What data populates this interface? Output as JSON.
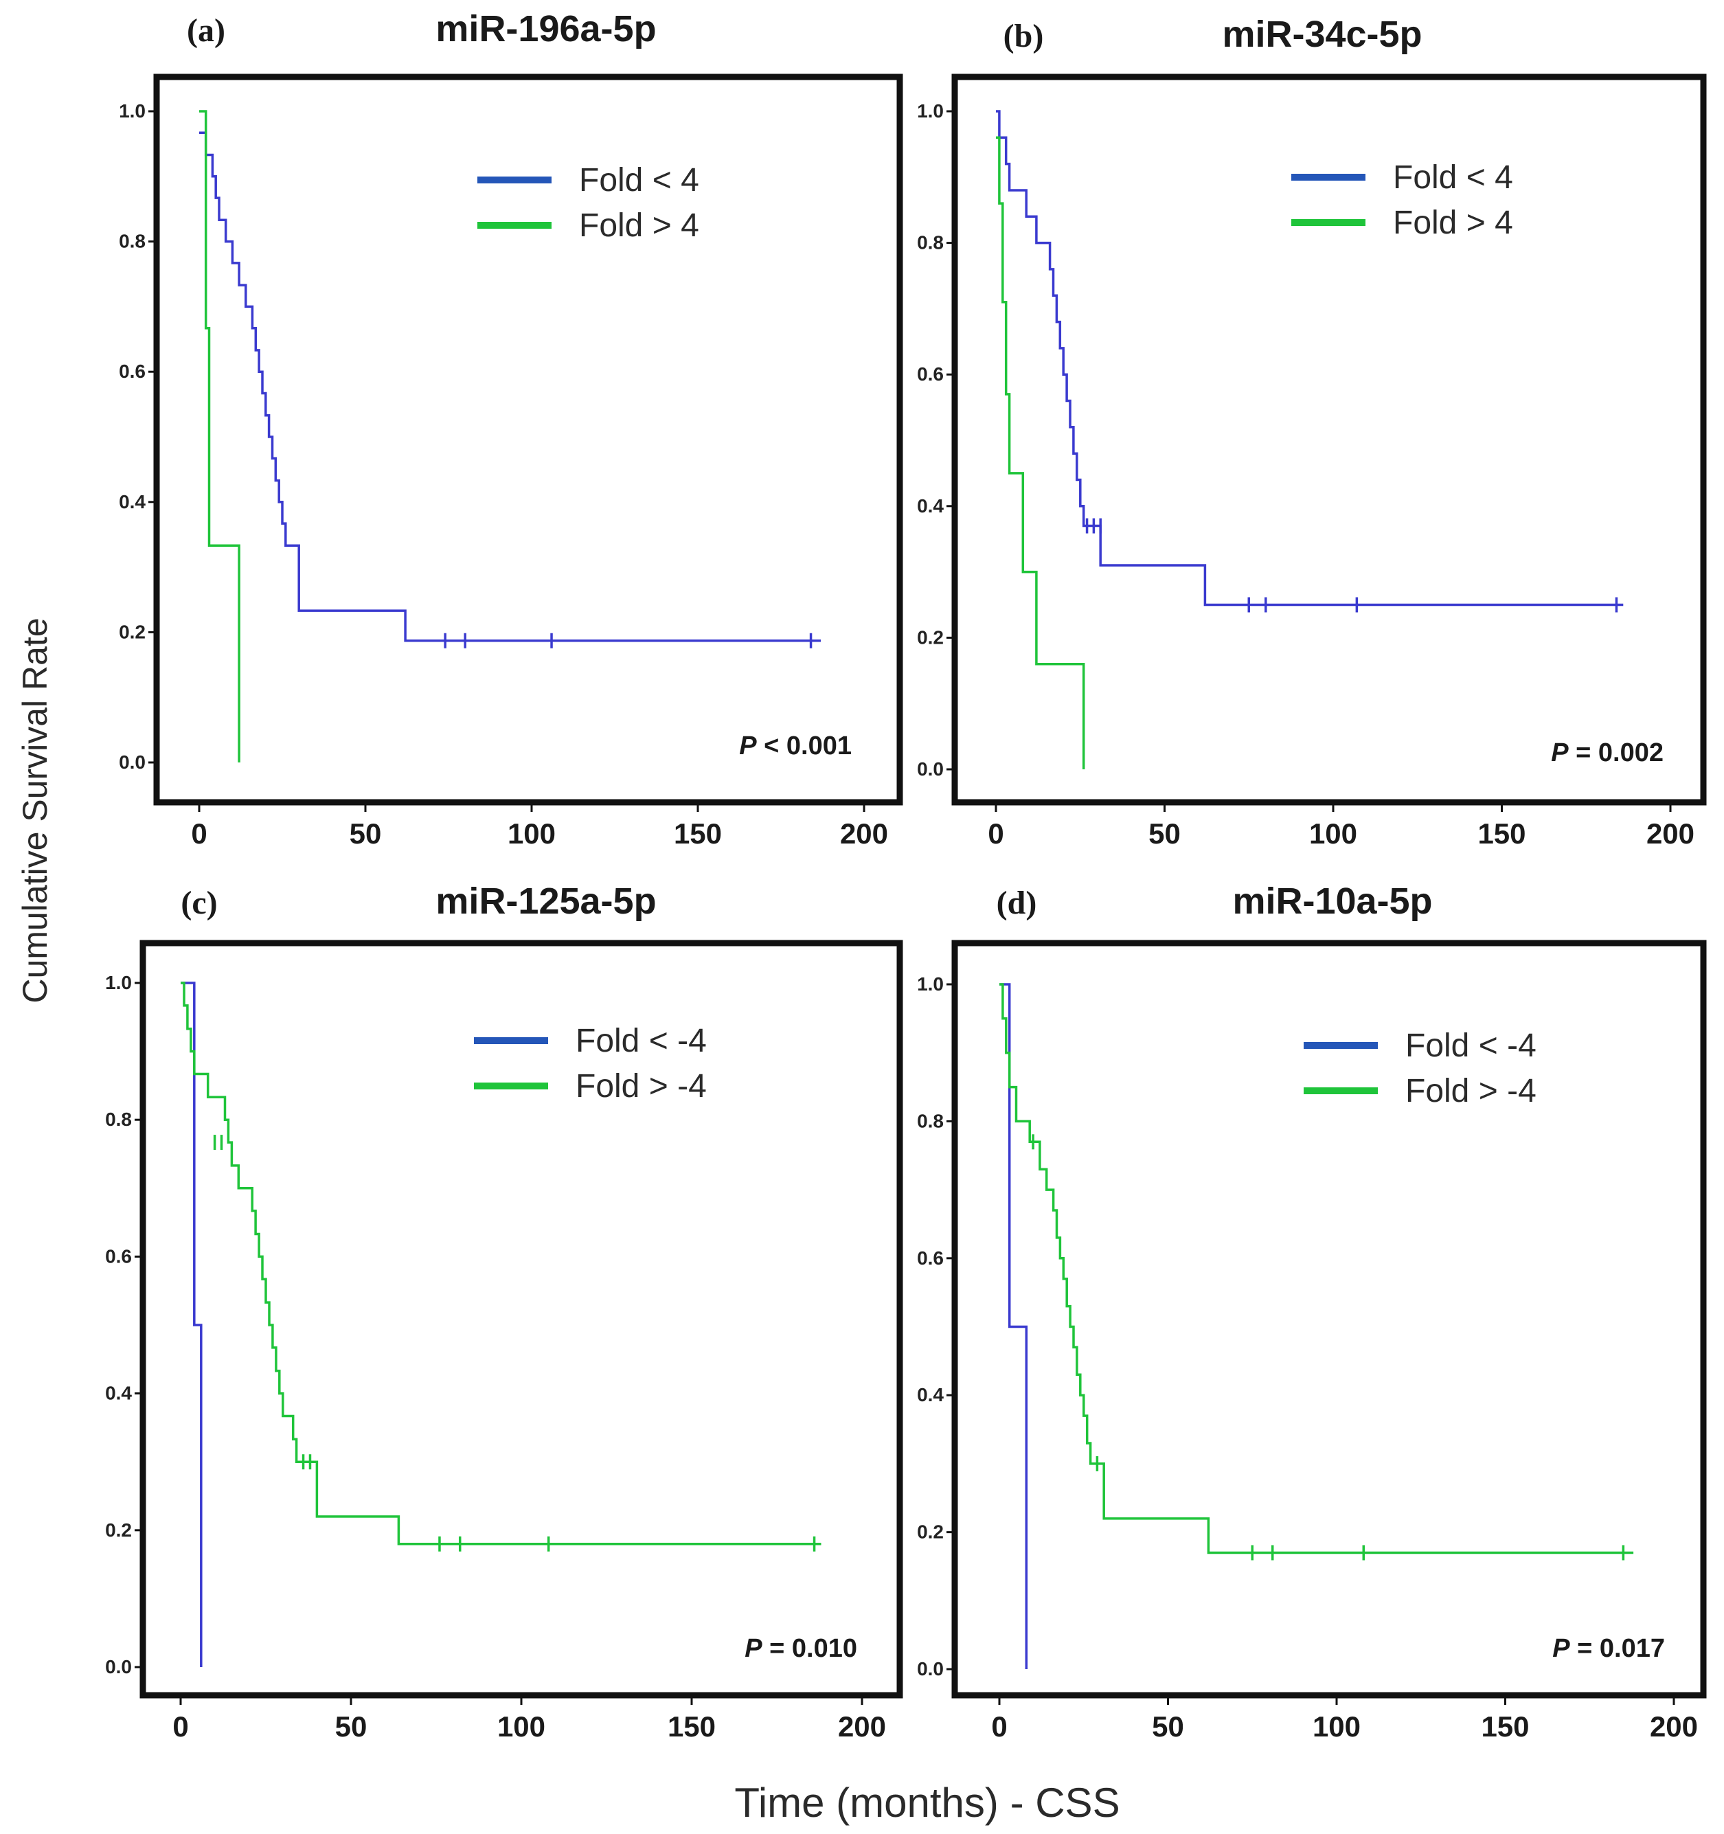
{
  "figure": {
    "ylabel": "Cumulative Survival Rate",
    "xlabel": "Time (months) - CSS"
  },
  "chart_data": [
    {
      "type": "line",
      "panel_label": "(a)",
      "title": "miR-196a-5p",
      "xlim": [
        0,
        200
      ],
      "ylim": [
        0,
        1
      ],
      "x_ticks": [
        0,
        50,
        100,
        150,
        200
      ],
      "y_ticks": [
        "0.0",
        "0.2",
        "0.4",
        "0.6",
        "0.8",
        "1.0"
      ],
      "legend_position": "top-right",
      "p_value": {
        "label": "P",
        "text": " < 0.001"
      },
      "colors": {
        "blue": "#3a3acf",
        "green": "#1fc43a"
      },
      "series": [
        {
          "name": "Fold < 4",
          "color": "blue",
          "steps": [
            [
              0,
              0.967
            ],
            [
              2,
              0.967
            ],
            [
              2,
              0.933
            ],
            [
              4,
              0.933
            ],
            [
              4,
              0.9
            ],
            [
              5,
              0.9
            ],
            [
              5,
              0.867
            ],
            [
              6,
              0.867
            ],
            [
              6,
              0.833
            ],
            [
              8,
              0.833
            ],
            [
              8,
              0.8
            ],
            [
              10,
              0.8
            ],
            [
              10,
              0.767
            ],
            [
              12,
              0.767
            ],
            [
              12,
              0.733
            ],
            [
              14,
              0.733
            ],
            [
              14,
              0.7
            ],
            [
              16,
              0.7
            ],
            [
              16,
              0.667
            ],
            [
              17,
              0.667
            ],
            [
              17,
              0.633
            ],
            [
              18,
              0.633
            ],
            [
              18,
              0.6
            ],
            [
              19,
              0.6
            ],
            [
              19,
              0.567
            ],
            [
              20,
              0.567
            ],
            [
              20,
              0.533
            ],
            [
              21,
              0.533
            ],
            [
              21,
              0.5
            ],
            [
              22,
              0.5
            ],
            [
              22,
              0.467
            ],
            [
              23,
              0.467
            ],
            [
              23,
              0.433
            ],
            [
              24,
              0.433
            ],
            [
              24,
              0.4
            ],
            [
              25,
              0.4
            ],
            [
              25,
              0.367
            ],
            [
              26,
              0.367
            ],
            [
              26,
              0.333
            ],
            [
              30,
              0.333
            ],
            [
              30,
              0.233
            ],
            [
              62,
              0.233
            ],
            [
              62,
              0.187
            ],
            [
              187,
              0.187
            ]
          ],
          "censored": [
            [
              74,
              0.187
            ],
            [
              80,
              0.187
            ],
            [
              106,
              0.187
            ],
            [
              184,
              0.187
            ]
          ]
        },
        {
          "name": "Fold > 4",
          "color": "green",
          "steps": [
            [
              0,
              1.0
            ],
            [
              2,
              1.0
            ],
            [
              2,
              0.667
            ],
            [
              3,
              0.667
            ],
            [
              3,
              0.333
            ],
            [
              12,
              0.333
            ],
            [
              12,
              0.0
            ]
          ],
          "censored": []
        }
      ]
    },
    {
      "type": "line",
      "panel_label": "(b)",
      "title": "miR-34c-5p",
      "xlim": [
        0,
        200
      ],
      "ylim": [
        0,
        1
      ],
      "x_ticks": [
        0,
        50,
        100,
        150,
        200
      ],
      "y_ticks": [
        "0.0",
        "0.2",
        "0.4",
        "0.6",
        "0.8",
        "1.0"
      ],
      "legend_position": "top-right",
      "p_value": {
        "label": "P",
        "text": " = 0.002"
      },
      "colors": {
        "blue": "#3a3acf",
        "green": "#1fc43a"
      },
      "series": [
        {
          "name": "Fold < 4",
          "color": "blue",
          "steps": [
            [
              0,
              1.0
            ],
            [
              1,
              1.0
            ],
            [
              1,
              0.96
            ],
            [
              3,
              0.96
            ],
            [
              3,
              0.92
            ],
            [
              4,
              0.92
            ],
            [
              4,
              0.88
            ],
            [
              9,
              0.88
            ],
            [
              9,
              0.84
            ],
            [
              12,
              0.84
            ],
            [
              12,
              0.8
            ],
            [
              16,
              0.8
            ],
            [
              16,
              0.76
            ],
            [
              17,
              0.76
            ],
            [
              17,
              0.72
            ],
            [
              18,
              0.72
            ],
            [
              18,
              0.68
            ],
            [
              19,
              0.68
            ],
            [
              19,
              0.64
            ],
            [
              20,
              0.64
            ],
            [
              20,
              0.6
            ],
            [
              21,
              0.6
            ],
            [
              21,
              0.56
            ],
            [
              22,
              0.56
            ],
            [
              22,
              0.52
            ],
            [
              23,
              0.52
            ],
            [
              23,
              0.48
            ],
            [
              24,
              0.48
            ],
            [
              24,
              0.44
            ],
            [
              25,
              0.44
            ],
            [
              25,
              0.4
            ],
            [
              26,
              0.4
            ],
            [
              26,
              0.37
            ],
            [
              31,
              0.37
            ],
            [
              31,
              0.31
            ],
            [
              62,
              0.31
            ],
            [
              62,
              0.25
            ],
            [
              186,
              0.25
            ]
          ],
          "censored": [
            [
              27,
              0.37
            ],
            [
              29,
              0.37
            ],
            [
              31,
              0.37
            ],
            [
              75,
              0.25
            ],
            [
              80,
              0.25
            ],
            [
              107,
              0.25
            ],
            [
              184,
              0.25
            ]
          ]
        },
        {
          "name": "Fold > 4",
          "color": "green",
          "steps": [
            [
              0,
              0.96
            ],
            [
              1,
              0.96
            ],
            [
              1,
              0.86
            ],
            [
              2,
              0.86
            ],
            [
              2,
              0.71
            ],
            [
              3,
              0.71
            ],
            [
              3,
              0.57
            ],
            [
              4,
              0.57
            ],
            [
              4,
              0.45
            ],
            [
              8,
              0.45
            ],
            [
              8,
              0.3
            ],
            [
              12,
              0.3
            ],
            [
              12,
              0.16
            ],
            [
              26,
              0.16
            ],
            [
              26,
              0.0
            ]
          ],
          "censored": []
        }
      ]
    },
    {
      "type": "line",
      "panel_label": "(c)",
      "title": "miR-125a-5p",
      "xlim": [
        0,
        200
      ],
      "ylim": [
        0,
        1
      ],
      "x_ticks": [
        0,
        50,
        100,
        150,
        200
      ],
      "y_ticks": [
        "0.0",
        "0.2",
        "0.4",
        "0.6",
        "0.8",
        "1.0"
      ],
      "legend_position": "top-right",
      "p_value": {
        "label": "P",
        "text": " = 0.010"
      },
      "colors": {
        "blue": "#3a3acf",
        "green": "#1fc43a"
      },
      "series": [
        {
          "name": "Fold < -4",
          "color": "blue",
          "steps": [
            [
              0,
              1.0
            ],
            [
              4,
              1.0
            ],
            [
              4,
              0.5
            ],
            [
              6,
              0.5
            ],
            [
              6,
              0.0
            ]
          ],
          "censored": []
        },
        {
          "name": "Fold > -4",
          "color": "green",
          "steps": [
            [
              0,
              1.0
            ],
            [
              1,
              1.0
            ],
            [
              1,
              0.967
            ],
            [
              2,
              0.967
            ],
            [
              2,
              0.933
            ],
            [
              3,
              0.933
            ],
            [
              3,
              0.9
            ],
            [
              4,
              0.9
            ],
            [
              4,
              0.867
            ],
            [
              8,
              0.867
            ],
            [
              8,
              0.833
            ],
            [
              13,
              0.833
            ],
            [
              13,
              0.8
            ],
            [
              14,
              0.8
            ],
            [
              14,
              0.767
            ],
            [
              15,
              0.767
            ],
            [
              15,
              0.733
            ],
            [
              17,
              0.733
            ],
            [
              17,
              0.7
            ],
            [
              21,
              0.7
            ],
            [
              21,
              0.667
            ],
            [
              22,
              0.667
            ],
            [
              22,
              0.633
            ],
            [
              23,
              0.633
            ],
            [
              23,
              0.6
            ],
            [
              24,
              0.6
            ],
            [
              24,
              0.567
            ],
            [
              25,
              0.567
            ],
            [
              25,
              0.533
            ],
            [
              26,
              0.533
            ],
            [
              26,
              0.5
            ],
            [
              27,
              0.5
            ],
            [
              27,
              0.467
            ],
            [
              28,
              0.467
            ],
            [
              28,
              0.433
            ],
            [
              29,
              0.433
            ],
            [
              29,
              0.4
            ],
            [
              30,
              0.4
            ],
            [
              30,
              0.367
            ],
            [
              33,
              0.367
            ],
            [
              33,
              0.333
            ],
            [
              34,
              0.333
            ],
            [
              34,
              0.3
            ],
            [
              40,
              0.3
            ],
            [
              40,
              0.22
            ],
            [
              64,
              0.22
            ],
            [
              64,
              0.18
            ],
            [
              188,
              0.18
            ]
          ],
          "censored": [
            [
              10,
              0.767
            ],
            [
              12,
              0.767
            ],
            [
              36,
              0.3
            ],
            [
              38,
              0.3
            ],
            [
              76,
              0.18
            ],
            [
              82,
              0.18
            ],
            [
              108,
              0.18
            ],
            [
              186,
              0.18
            ]
          ]
        }
      ]
    },
    {
      "type": "line",
      "panel_label": "(d)",
      "title": "miR-10a-5p",
      "xlim": [
        0,
        200
      ],
      "ylim": [
        0,
        1
      ],
      "x_ticks": [
        0,
        50,
        100,
        150,
        200
      ],
      "y_ticks": [
        "0.0",
        "0.2",
        "0.4",
        "0.6",
        "0.8",
        "1.0"
      ],
      "legend_position": "top-right",
      "p_value": {
        "label": "P",
        "text": " = 0.017"
      },
      "colors": {
        "blue": "#3a3acf",
        "green": "#1fc43a"
      },
      "series": [
        {
          "name": "Fold < -4",
          "color": "blue",
          "steps": [
            [
              0,
              1.0
            ],
            [
              3,
              1.0
            ],
            [
              3,
              0.5
            ],
            [
              8,
              0.5
            ],
            [
              8,
              0.0
            ]
          ],
          "censored": []
        },
        {
          "name": "Fold > -4",
          "color": "green",
          "steps": [
            [
              0,
              1.0
            ],
            [
              1,
              1.0
            ],
            [
              1,
              0.95
            ],
            [
              2,
              0.95
            ],
            [
              2,
              0.9
            ],
            [
              3,
              0.9
            ],
            [
              3,
              0.85
            ],
            [
              5,
              0.85
            ],
            [
              5,
              0.8
            ],
            [
              9,
              0.8
            ],
            [
              9,
              0.77
            ],
            [
              12,
              0.77
            ],
            [
              12,
              0.73
            ],
            [
              14,
              0.73
            ],
            [
              14,
              0.7
            ],
            [
              16,
              0.7
            ],
            [
              16,
              0.67
            ],
            [
              17,
              0.67
            ],
            [
              17,
              0.63
            ],
            [
              18,
              0.63
            ],
            [
              18,
              0.6
            ],
            [
              19,
              0.6
            ],
            [
              19,
              0.57
            ],
            [
              20,
              0.57
            ],
            [
              20,
              0.53
            ],
            [
              21,
              0.53
            ],
            [
              21,
              0.5
            ],
            [
              22,
              0.5
            ],
            [
              22,
              0.47
            ],
            [
              23,
              0.47
            ],
            [
              23,
              0.43
            ],
            [
              24,
              0.43
            ],
            [
              24,
              0.4
            ],
            [
              25,
              0.4
            ],
            [
              25,
              0.37
            ],
            [
              26,
              0.37
            ],
            [
              26,
              0.33
            ],
            [
              27,
              0.33
            ],
            [
              27,
              0.3
            ],
            [
              31,
              0.3
            ],
            [
              31,
              0.22
            ],
            [
              62,
              0.22
            ],
            [
              62,
              0.17
            ],
            [
              188,
              0.17
            ]
          ],
          "censored": [
            [
              10,
              0.77
            ],
            [
              29,
              0.3
            ],
            [
              75,
              0.17
            ],
            [
              81,
              0.17
            ],
            [
              108,
              0.17
            ],
            [
              185,
              0.17
            ]
          ]
        }
      ]
    }
  ]
}
